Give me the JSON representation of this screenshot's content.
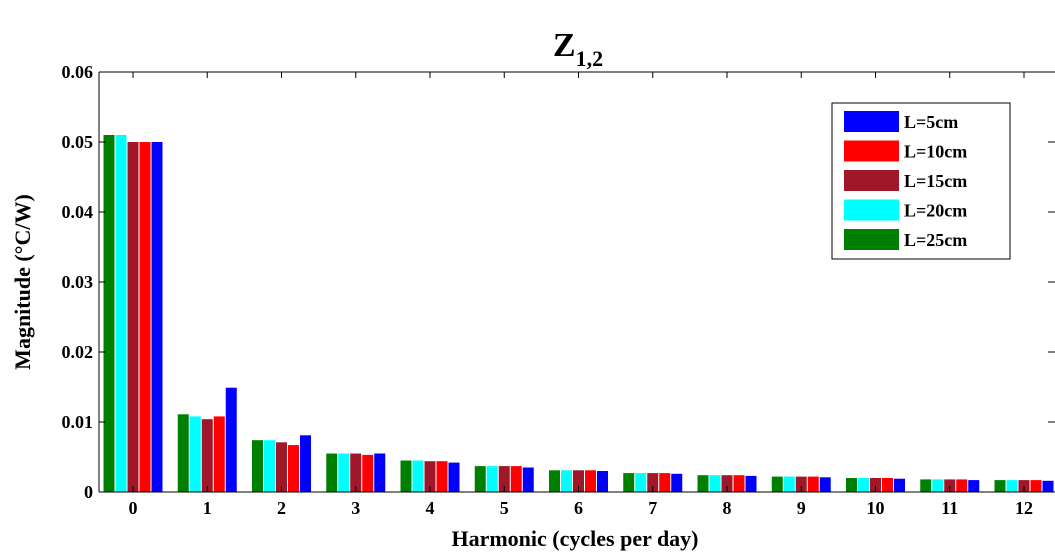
{
  "chart_data": {
    "type": "bar",
    "title": {
      "main": "Z",
      "subscript": "1,2"
    },
    "xlabel": "Harmonic (cycles per day)",
    "ylabel": "Magnitude (°C/W)",
    "ylim": [
      0,
      0.06
    ],
    "yticks": [
      "0",
      "0.01",
      "0.02",
      "0.03",
      "0.04",
      "0.05",
      "0.06"
    ],
    "categories": [
      "0",
      "1",
      "2",
      "3",
      "4",
      "5",
      "6",
      "7",
      "8",
      "9",
      "10",
      "11",
      "12"
    ],
    "grid": false,
    "legend_position": "top-right",
    "series": [
      {
        "name": "L=25cm",
        "color": "#008000",
        "values": [
          0.051,
          0.0111,
          0.0074,
          0.0055,
          0.0045,
          0.0037,
          0.0031,
          0.0027,
          0.0024,
          0.0022,
          0.002,
          0.0018,
          0.0017
        ]
      },
      {
        "name": "L=20cm",
        "color": "#00FFFF",
        "values": [
          0.051,
          0.0108,
          0.0074,
          0.0055,
          0.0045,
          0.0037,
          0.0031,
          0.0027,
          0.0024,
          0.0022,
          0.002,
          0.0018,
          0.0017
        ]
      },
      {
        "name": "L=15cm",
        "color": "#A0172A",
        "values": [
          0.05,
          0.0104,
          0.0071,
          0.0055,
          0.0044,
          0.0037,
          0.0031,
          0.0027,
          0.0024,
          0.0022,
          0.002,
          0.0018,
          0.0017
        ]
      },
      {
        "name": "L=10cm",
        "color": "#FF0000",
        "values": [
          0.05,
          0.0108,
          0.0067,
          0.0053,
          0.0044,
          0.0037,
          0.0031,
          0.0027,
          0.0024,
          0.0022,
          0.002,
          0.0018,
          0.0017
        ]
      },
      {
        "name": "L=5cm",
        "color": "#0000FF",
        "values": [
          0.05,
          0.0149,
          0.0081,
          0.0055,
          0.0042,
          0.0035,
          0.003,
          0.0026,
          0.0023,
          0.0021,
          0.0019,
          0.0017,
          0.0016
        ]
      }
    ],
    "legend_order": [
      "L=5cm",
      "L=10cm",
      "L=15cm",
      "L=20cm",
      "L=25cm"
    ]
  }
}
